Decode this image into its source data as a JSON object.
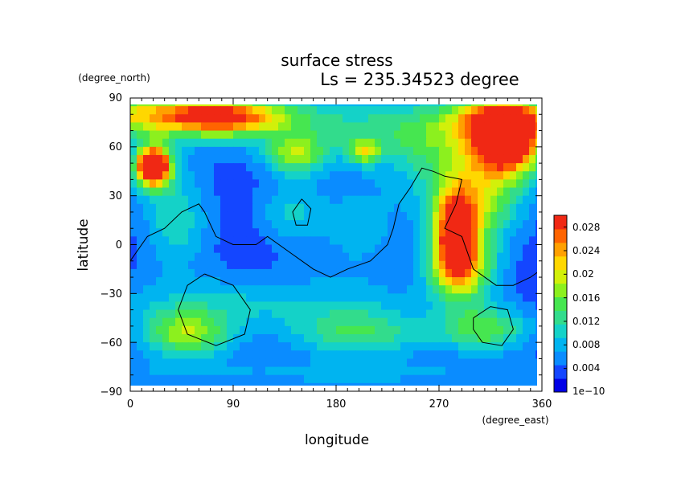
{
  "chart_data": {
    "type": "heatmap",
    "title": "surface stress",
    "subtitle": "Ls = 235.34523 degree",
    "xlabel": "longitude",
    "ylabel": "latitude",
    "x_unit": "(degree_east)",
    "y_unit": "(degree_north)",
    "xlim": [
      0,
      360
    ],
    "ylim": [
      -90,
      90
    ],
    "x_ticks": [
      "0",
      "90",
      "180",
      "270",
      "360"
    ],
    "y_ticks": [
      "90",
      "60",
      "30",
      "0",
      "−30",
      "−60",
      "−90"
    ],
    "colorbar": {
      "min": 0,
      "max": 0.03,
      "labels": [
        "0.028",
        "0.024",
        "0.02",
        "0.016",
        "0.012",
        "0.008",
        "0.004",
        "1e−10"
      ],
      "colors": [
        "#0000e6",
        "#1446ff",
        "#0a8cff",
        "#00b4f0",
        "#14d2c8",
        "#32dc8c",
        "#46e650",
        "#8cf01e",
        "#d2f00a",
        "#ffd700",
        "#ffa000",
        "#ff6400",
        "#f02814"
      ]
    },
    "blobs": [
      {
        "lon": 10,
        "lat": 80,
        "w": 120,
        "h": 14,
        "v": 0.016
      },
      {
        "lon": 80,
        "lat": 78,
        "w": 50,
        "h": 10,
        "v": 0.016
      },
      {
        "lon": 20,
        "lat": 48,
        "w": 12,
        "h": 9,
        "v": 0.03
      },
      {
        "lon": 20,
        "lat": 48,
        "w": 20,
        "h": 16,
        "v": 0.015
      },
      {
        "lon": 330,
        "lat": 62,
        "w": 30,
        "h": 20,
        "v": 0.028
      },
      {
        "lon": 330,
        "lat": 78,
        "w": 45,
        "h": 12,
        "v": 0.018
      },
      {
        "lon": 285,
        "lat": 5,
        "w": 18,
        "h": 25,
        "v": 0.024
      },
      {
        "lon": 300,
        "lat": 25,
        "w": 40,
        "h": 25,
        "v": 0.014
      },
      {
        "lon": 290,
        "lat": -15,
        "w": 30,
        "h": 20,
        "v": 0.016
      },
      {
        "lon": 280,
        "lat": 60,
        "w": 60,
        "h": 30,
        "v": 0.008
      },
      {
        "lon": 200,
        "lat": 70,
        "w": 130,
        "h": 20,
        "v": 0.007
      },
      {
        "lon": 145,
        "lat": 55,
        "w": 25,
        "h": 12,
        "v": 0.012
      },
      {
        "lon": 205,
        "lat": 57,
        "w": 14,
        "h": 7,
        "v": 0.012
      },
      {
        "lon": 40,
        "lat": 15,
        "w": 30,
        "h": 30,
        "v": 0.008
      },
      {
        "lon": 140,
        "lat": 20,
        "w": 30,
        "h": 20,
        "v": 0.006
      },
      {
        "lon": 50,
        "lat": -55,
        "w": 40,
        "h": 15,
        "v": 0.014
      },
      {
        "lon": 200,
        "lat": -55,
        "w": 60,
        "h": 15,
        "v": 0.01
      },
      {
        "lon": 310,
        "lat": -52,
        "w": 40,
        "h": 14,
        "v": 0.012
      },
      {
        "lon": 110,
        "lat": -35,
        "w": 150,
        "h": 18,
        "v": 0.006
      },
      {
        "lon": 180,
        "lat": -80,
        "w": 360,
        "h": 10,
        "v": 0.004
      },
      {
        "lon": 200,
        "lat": 10,
        "w": 40,
        "h": 30,
        "v": 0.005
      }
    ],
    "contours": [
      [
        [
          0,
          -10
        ],
        [
          15,
          5
        ],
        [
          30,
          10
        ],
        [
          45,
          20
        ],
        [
          60,
          25
        ],
        [
          65,
          20
        ],
        [
          75,
          5
        ],
        [
          90,
          0
        ],
        [
          110,
          0
        ],
        [
          120,
          5
        ],
        [
          140,
          -5
        ],
        [
          160,
          -15
        ],
        [
          175,
          -20
        ],
        [
          190,
          -15
        ],
        [
          210,
          -10
        ],
        [
          225,
          0
        ],
        [
          230,
          10
        ],
        [
          235,
          25
        ],
        [
          245,
          35
        ],
        [
          255,
          47
        ],
        [
          265,
          45
        ],
        [
          275,
          42
        ],
        [
          290,
          40
        ],
        [
          285,
          25
        ],
        [
          275,
          10
        ],
        [
          290,
          5
        ],
        [
          300,
          -15
        ],
        [
          320,
          -25
        ],
        [
          335,
          -25
        ],
        [
          350,
          -20
        ],
        [
          360,
          -15
        ]
      ],
      [
        [
          65,
          -18
        ],
        [
          90,
          -25
        ],
        [
          105,
          -40
        ],
        [
          100,
          -55
        ],
        [
          75,
          -62
        ],
        [
          50,
          -55
        ],
        [
          42,
          -40
        ],
        [
          50,
          -25
        ],
        [
          65,
          -18
        ]
      ],
      [
        [
          300,
          -45
        ],
        [
          315,
          -38
        ],
        [
          330,
          -40
        ],
        [
          335,
          -52
        ],
        [
          325,
          -62
        ],
        [
          308,
          -60
        ],
        [
          300,
          -52
        ],
        [
          300,
          -45
        ]
      ],
      [
        [
          150,
          28
        ],
        [
          158,
          22
        ],
        [
          155,
          12
        ],
        [
          145,
          12
        ],
        [
          142,
          20
        ],
        [
          150,
          28
        ]
      ]
    ]
  }
}
